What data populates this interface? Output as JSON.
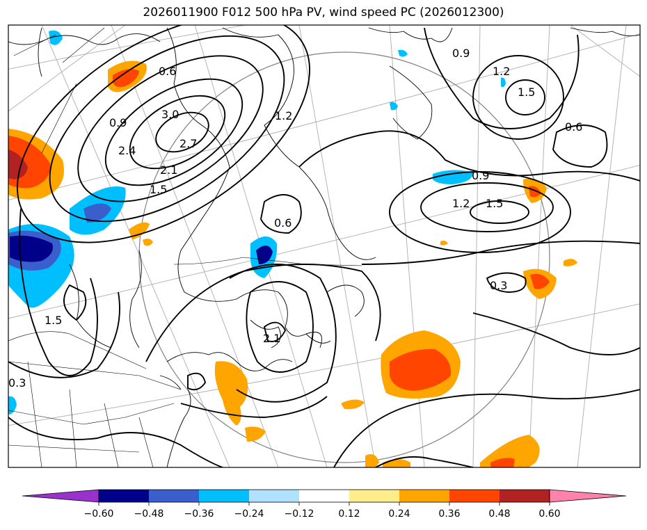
{
  "title": "2026011900 F012 500 hPa PV, wind speed PC (2026012300)",
  "colorbar": {
    "ticks": [
      "−0.60",
      "−0.48",
      "−0.36",
      "−0.24",
      "−0.12",
      "0.12",
      "0.24",
      "0.36",
      "0.48",
      "0.60"
    ],
    "colors": [
      "#9932cc",
      "#00008b",
      "#3a5fcd",
      "#00bfff",
      "#b0e2ff",
      "#ffffff",
      "#ffec8b",
      "#ffa500",
      "#ff4500",
      "#b22222",
      "#ff82ab"
    ],
    "extend": "both"
  },
  "contour_labels": [
    "0.6",
    "0.9",
    "1.2",
    "1.5",
    "0.6",
    "0.9",
    "1.2",
    "1.5",
    "0.3",
    "0.9",
    "3.0",
    "2.4",
    "2.1",
    "1.5",
    "2.7",
    "1.2",
    "0.6",
    "1.5",
    "2.1",
    "0.3"
  ],
  "colors": {
    "land_line": "#000000",
    "grid_line": "#b4b4b4",
    "contour_line": "#000000"
  }
}
